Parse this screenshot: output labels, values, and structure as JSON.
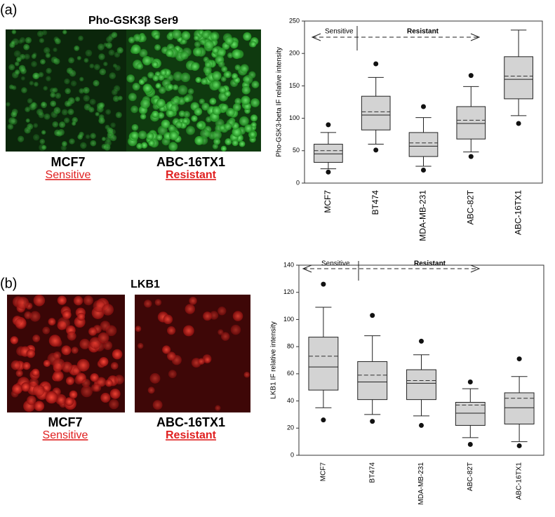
{
  "figure": {
    "panels": [
      {
        "label": "(a)",
        "title": "Pho-GSK3β Ser9",
        "captions": [
          {
            "cell": "MCF7",
            "status": "Sensitive"
          },
          {
            "cell": "ABC-16TX1",
            "status": "Resistant"
          }
        ]
      },
      {
        "label": "(b)",
        "title": "LKB1",
        "captions": [
          {
            "cell": "MCF7",
            "status": "Sensitive"
          },
          {
            "cell": "ABC-16TX1",
            "status": "Resistant"
          }
        ]
      }
    ]
  },
  "chart_data": [
    {
      "type": "box",
      "ylabel": "Pho-GSK3-beta IF relative intensity",
      "annotations": [
        "Sensitive",
        "Resistant"
      ],
      "categories": [
        "MCF7",
        "BT474",
        "MDA-MB-231",
        "ABC-82T",
        "ABC-16TX1"
      ],
      "whisker_low": [
        22,
        60,
        26,
        48,
        104
      ],
      "q1": [
        32,
        82,
        41,
        68,
        130
      ],
      "median": [
        45,
        105,
        57,
        92,
        160
      ],
      "mean": [
        50,
        110,
        62,
        97,
        165
      ],
      "q3": [
        60,
        134,
        78,
        118,
        195
      ],
      "whisker_high": [
        78,
        163,
        101,
        149,
        236
      ],
      "outliers_low": [
        17,
        51,
        20,
        41,
        92
      ],
      "outliers_high": [
        90,
        184,
        118,
        166,
        null
      ],
      "color": "#d3d3d3",
      "ylim": [
        0,
        250
      ],
      "yticks": [
        0,
        50,
        100,
        150,
        200,
        250
      ]
    },
    {
      "type": "box",
      "ylabel": "LKB1 IF relative intensity",
      "annotations": [
        "Sensitive",
        "Resistant"
      ],
      "categories": [
        "MCF7",
        "BT474",
        "MDA-MB-231",
        "ABC-82T",
        "ABC-16TX1"
      ],
      "whisker_low": [
        35,
        30,
        29,
        13,
        10
      ],
      "q1": [
        48,
        41,
        41,
        22,
        23
      ],
      "median": [
        65,
        54,
        53,
        31,
        35
      ],
      "mean": [
        73,
        59,
        55,
        37,
        42
      ],
      "q3": [
        87,
        69,
        63,
        39,
        46
      ],
      "whisker_high": [
        109,
        88,
        74,
        49,
        58
      ],
      "outliers_low": [
        26,
        25,
        22,
        8,
        7
      ],
      "outliers_high": [
        126,
        103,
        84,
        54,
        71
      ],
      "color": "#d3d3d3",
      "ylim": [
        0,
        140
      ],
      "yticks": [
        0,
        20,
        40,
        60,
        80,
        100,
        120,
        140
      ]
    }
  ]
}
